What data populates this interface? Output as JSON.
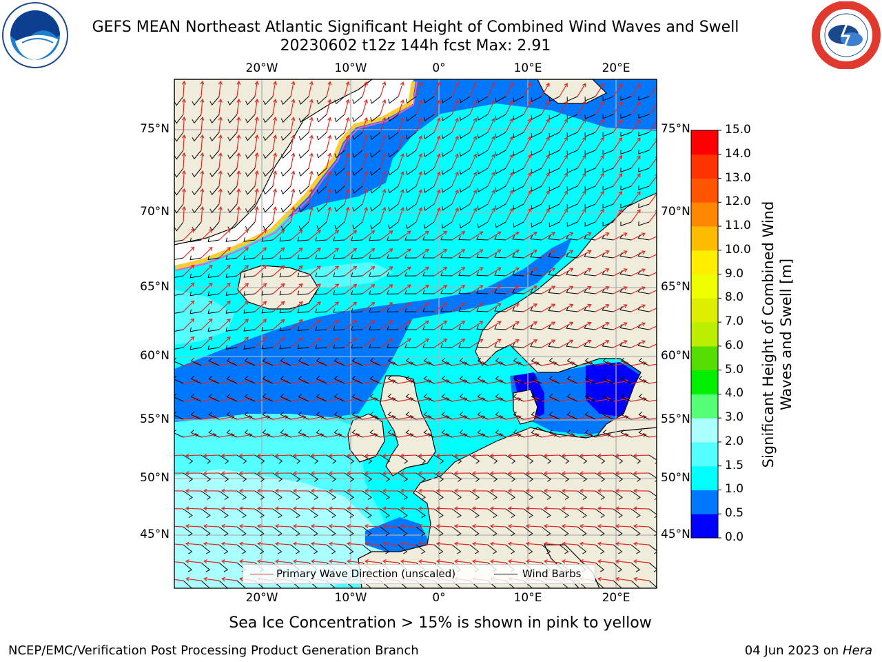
{
  "header": {
    "title_line1": "GEFS MEAN Northeast Atlantic Significant Height of Combined Wind Waves and Swell",
    "title_line2": "20230602 t12z 144h fcst   Max: 2.91"
  },
  "logos": {
    "left": "noaa-logo",
    "right": "nws-logo"
  },
  "map": {
    "lon_labels": [
      "20°W",
      "10°W",
      "0°",
      "10°E",
      "20°E"
    ],
    "lat_labels": [
      "75°N",
      "70°N",
      "65°N",
      "60°N",
      "55°N",
      "50°N",
      "45°N"
    ],
    "colors": {
      "land": "#efecdc",
      "ice": "#ffffff",
      "gridline": "#b0b0b0",
      "wave_arrow": "#e3261f",
      "wind_barb": "#000000"
    }
  },
  "colorbar": {
    "label": "Significant Height of Combined Wind Waves and Swell [m]",
    "ticks": [
      "15.0",
      "14.0",
      "13.0",
      "12.0",
      "11.0",
      "10.0",
      "9.0",
      "8.0",
      "7.0",
      "6.0",
      "5.0",
      "4.0",
      "3.0",
      "2.0",
      "1.5",
      "1.0",
      "0.5",
      "0.0"
    ],
    "levels": [
      {
        "from": 0.0,
        "to": 0.5,
        "color": "#0000ff"
      },
      {
        "from": 0.5,
        "to": 1.0,
        "color": "#0077ff"
      },
      {
        "from": 1.0,
        "to": 1.5,
        "color": "#00ffff"
      },
      {
        "from": 1.5,
        "to": 2.0,
        "color": "#55ffff"
      },
      {
        "from": 2.0,
        "to": 3.0,
        "color": "#aaffff"
      },
      {
        "from": 3.0,
        "to": 4.0,
        "color": "#55ff77"
      },
      {
        "from": 4.0,
        "to": 5.0,
        "color": "#00ee00"
      },
      {
        "from": 5.0,
        "to": 6.0,
        "color": "#55dd00"
      },
      {
        "from": 6.0,
        "to": 7.0,
        "color": "#bbee00"
      },
      {
        "from": 7.0,
        "to": 8.0,
        "color": "#ddee00"
      },
      {
        "from": 8.0,
        "to": 9.0,
        "color": "#eeff00"
      },
      {
        "from": 9.0,
        "to": 10.0,
        "color": "#ffee00"
      },
      {
        "from": 10.0,
        "to": 11.0,
        "color": "#ffbb00"
      },
      {
        "from": 11.0,
        "to": 12.0,
        "color": "#ff8800"
      },
      {
        "from": 12.0,
        "to": 13.0,
        "color": "#ff5500"
      },
      {
        "from": 13.0,
        "to": 14.0,
        "color": "#ff3300"
      },
      {
        "from": 14.0,
        "to": 15.0,
        "color": "#ff0000"
      }
    ]
  },
  "legend": {
    "wave_direction": "Primary Wave Direction (unscaled)",
    "wind_barbs": "Wind Barbs"
  },
  "footer": {
    "sea_ice_note": "Sea Ice Concentration > 15% is shown in pink to yellow",
    "credit": "NCEP/EMC/Verification Post Processing Product Generation Branch",
    "date": "04 Jun 2023 on",
    "host": "Hera"
  }
}
